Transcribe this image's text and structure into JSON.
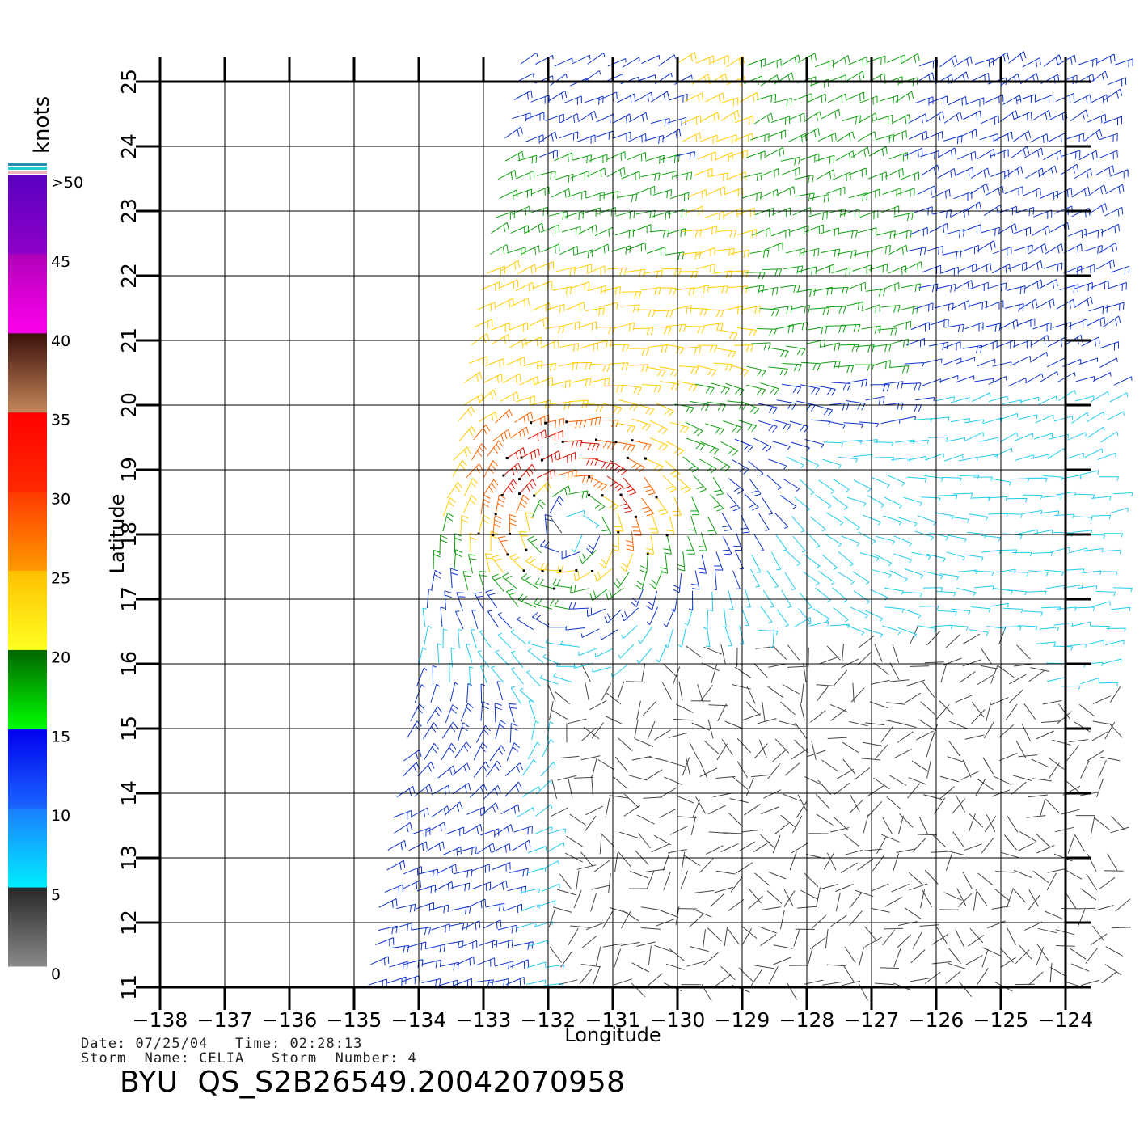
{
  "map": {
    "xlabel": "Longitude",
    "ylabel": "Latitude",
    "lon_range": [
      -138,
      -124
    ],
    "lat_range": [
      11,
      25
    ],
    "lon_ticks": [
      -138,
      -137,
      -136,
      -135,
      -134,
      -133,
      -132,
      -131,
      -130,
      -129,
      -128,
      -127,
      -126,
      -125,
      -124
    ],
    "lat_ticks": [
      11,
      12,
      13,
      14,
      15,
      16,
      17,
      18,
      19,
      20,
      21,
      22,
      23,
      24,
      25
    ],
    "lon_tick_labels": [
      "−138",
      "−137",
      "−136",
      "−135",
      "−134",
      "−133",
      "−132",
      "−131",
      "−130",
      "−129",
      "−128",
      "−127",
      "−126",
      "−125",
      "−124"
    ],
    "lat_tick_labels": [
      "11",
      "12",
      "13",
      "14",
      "15",
      "16",
      "17",
      "18",
      "19",
      "20",
      "21",
      "22",
      "23",
      "24",
      "25"
    ],
    "grid": true,
    "storm_center": {
      "lon": -131.7,
      "lat": 18.3
    },
    "swath": {
      "left_edge_bottom_lon": -134.8,
      "left_edge_top_lon": -132.5,
      "right_edge_lon": -123.7
    },
    "barb_colors": {
      "0_5": "#444444",
      "5_10": "#22ccee",
      "10_15": "#1133cc",
      "15_20": "#11a011",
      "20_25": "#ffcc00",
      "25_30": "#ff6600",
      "30_35": "#dd1100"
    }
  },
  "legend": {
    "unit": "knots",
    "labels": [
      ">50",
      "45",
      "40",
      "35",
      "30",
      "25",
      "20",
      "15",
      "10",
      "5",
      "0"
    ],
    "bands": [
      {
        "from": 0,
        "to": 5,
        "top": "#282828",
        "bottom": "#8a8a8a"
      },
      {
        "from": 5,
        "to": 10,
        "top": "#1a7dff",
        "bottom": "#00eeff"
      },
      {
        "from": 10,
        "to": 15,
        "top": "#0000ee",
        "bottom": "#1a66ff"
      },
      {
        "from": 15,
        "to": 20,
        "top": "#006400",
        "bottom": "#00ff00"
      },
      {
        "from": 20,
        "to": 25,
        "top": "#ffc000",
        "bottom": "#ffff20"
      },
      {
        "from": 25,
        "to": 30,
        "top": "#ff3800",
        "bottom": "#ff9a00"
      },
      {
        "from": 30,
        "to": 35,
        "top": "#ff0000",
        "bottom": "#ff2a00"
      },
      {
        "from": 35,
        "to": 40,
        "top": "#3a0f0a",
        "bottom": "#c4875a"
      },
      {
        "from": 40,
        "to": 45,
        "top": "#b000b8",
        "bottom": "#ff00ee"
      },
      {
        "from": 45,
        "to": 50,
        "top": "#5a00c0",
        "bottom": "#9000c8"
      }
    ],
    "cap_colors": [
      "#2a8ab0",
      "#1ad0d0",
      "#f0b0c0"
    ]
  },
  "footer": {
    "date_label": "Date:",
    "date": "07/25/04",
    "time_label": "Time:",
    "time": "02:28:13",
    "storm_name_label": "Storm  Name:",
    "storm_name": "CELIA",
    "storm_number_label": "Storm  Number:",
    "storm_number": "4",
    "file_title": "BYU  QS_S2B26549.20042070958"
  }
}
